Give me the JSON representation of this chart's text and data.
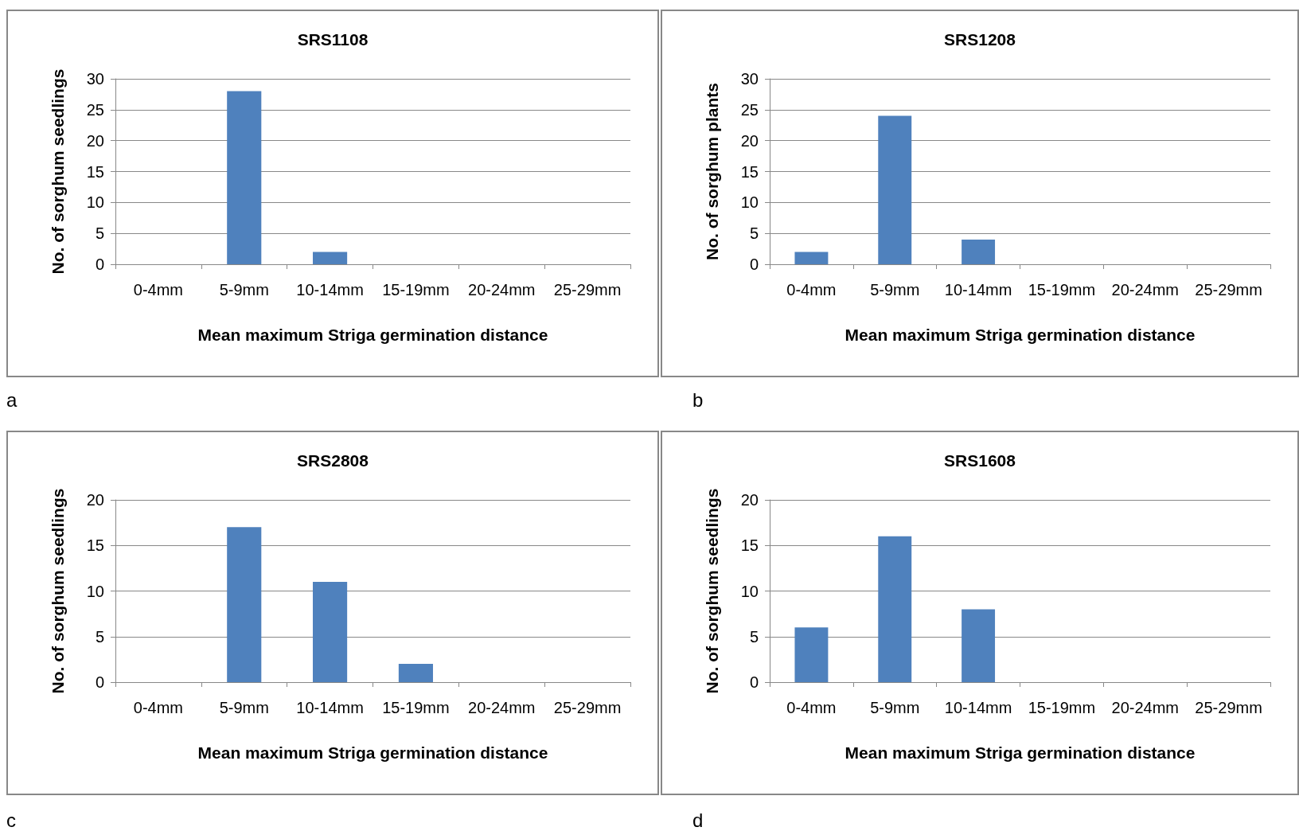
{
  "chart_data": [
    {
      "type": "bar",
      "title": "SRS1108",
      "xlabel": "Mean maximum Striga germination distance",
      "ylabel": "No. of sorghum seedlings",
      "categories": [
        "0-4mm",
        "5-9mm",
        "10-14mm",
        "15-19mm",
        "20-24mm",
        "25-29mm"
      ],
      "values": [
        0,
        28,
        2,
        0,
        0,
        0
      ],
      "color": "#4f81bd",
      "ylim": [
        0,
        30
      ],
      "yticks": [
        0,
        5,
        10,
        15,
        20,
        25,
        30
      ],
      "grid": "y",
      "annotations": [
        "a"
      ]
    },
    {
      "type": "bar",
      "title": "SRS1208",
      "xlabel": "Mean maximum Striga germination distance",
      "ylabel": "No. of sorghum plants",
      "categories": [
        "0-4mm",
        "5-9mm",
        "10-14mm",
        "15-19mm",
        "20-24mm",
        "25-29mm"
      ],
      "values": [
        2,
        24,
        4,
        0,
        0,
        0
      ],
      "color": "#4f81bd",
      "ylim": [
        0,
        30
      ],
      "yticks": [
        0,
        5,
        10,
        15,
        20,
        25,
        30
      ],
      "grid": "y",
      "annotations": [
        "b"
      ]
    },
    {
      "type": "bar",
      "title": "SRS2808",
      "xlabel": "Mean maximum Striga germination distance",
      "ylabel": "No. of sorghum seedlings",
      "categories": [
        "0-4mm",
        "5-9mm",
        "10-14mm",
        "15-19mm",
        "20-24mm",
        "25-29mm"
      ],
      "values": [
        0,
        17,
        11,
        2,
        0,
        0
      ],
      "color": "#4f81bd",
      "ylim": [
        0,
        20
      ],
      "yticks": [
        0,
        5,
        10,
        15,
        20
      ],
      "grid": "y",
      "annotations": [
        "c"
      ]
    },
    {
      "type": "bar",
      "title": "SRS1608",
      "xlabel": "Mean maximum Striga germination distance",
      "ylabel": "No. of sorghum seedlings",
      "categories": [
        "0-4mm",
        "5-9mm",
        "10-14mm",
        "15-19mm",
        "20-24mm",
        "25-29mm"
      ],
      "values": [
        6,
        16,
        8,
        0,
        0,
        0
      ],
      "color": "#4f81bd",
      "ylim": [
        0,
        20
      ],
      "yticks": [
        0,
        5,
        10,
        15,
        20
      ],
      "grid": "y",
      "annotations": [
        "d"
      ]
    }
  ]
}
